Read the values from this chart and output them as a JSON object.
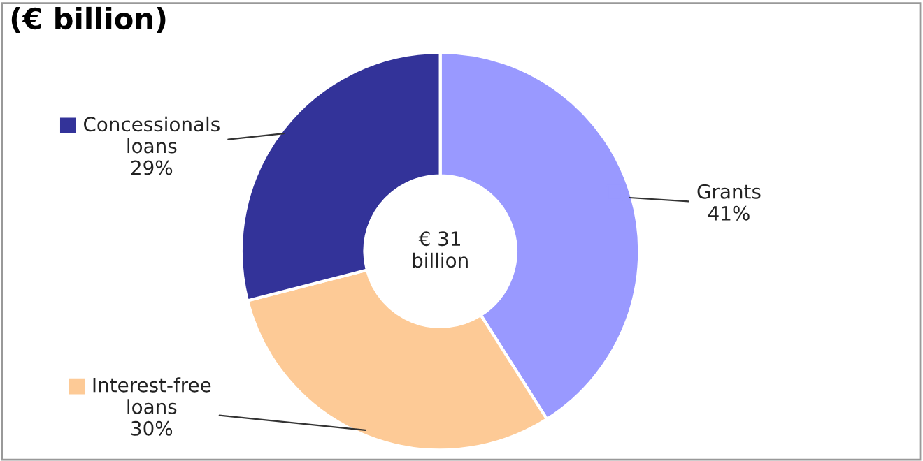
{
  "chart_data": {
    "type": "donut",
    "title": "(€ billion)",
    "categories": [
      "Grants",
      "Interest-free\nloans",
      "Concessionals\nloans"
    ],
    "values": [
      41,
      30,
      29
    ],
    "colors": [
      "#9999ff",
      "#fdca96",
      "#333399"
    ],
    "value_labels": [
      "41%",
      "30%",
      "29%"
    ],
    "annotations": [
      "€ 31\nbillion"
    ],
    "legend": "left"
  }
}
